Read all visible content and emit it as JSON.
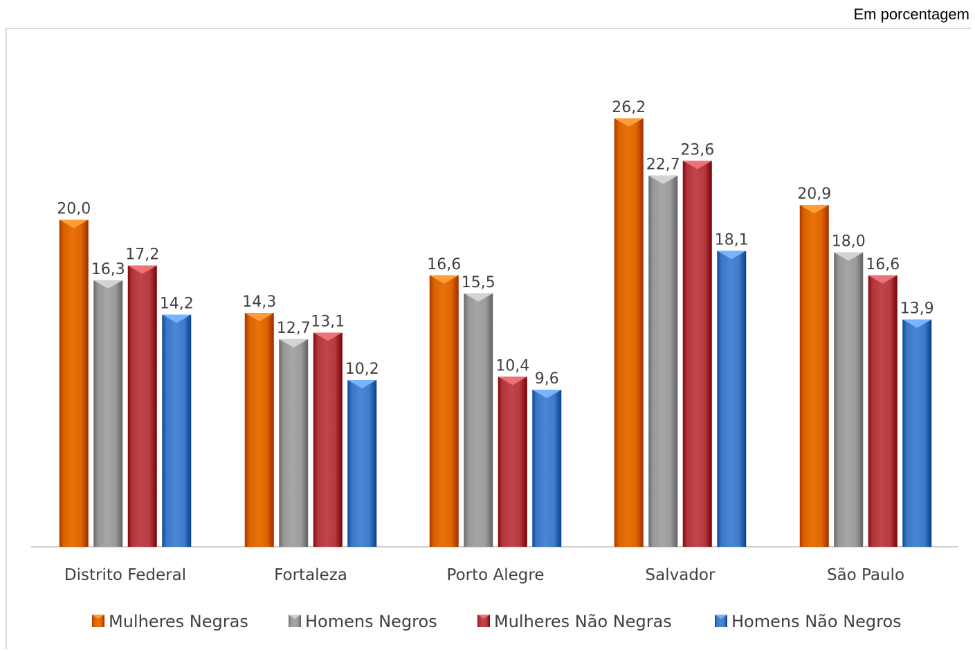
{
  "unit_note": "Em porcentagem",
  "colors": {
    "Mulheres Negras": "#e8710a",
    "Homens Negros": "#a6a6a6",
    "Mulheres Não Negras": "#c0454a",
    "Homens Não Negros": "#4a86d4"
  },
  "chart_data": {
    "type": "bar",
    "categories": [
      "Distrito Federal",
      "Fortaleza",
      "Porto Alegre",
      "Salvador",
      "São Paulo"
    ],
    "series": [
      {
        "name": "Mulheres Negras",
        "values": [
          20.0,
          14.3,
          16.6,
          26.2,
          20.9
        ],
        "labels": [
          "20,0",
          "14,3",
          "16,6",
          "26,2",
          "20,9"
        ]
      },
      {
        "name": "Homens Negros",
        "values": [
          16.3,
          12.7,
          15.5,
          22.7,
          18.0
        ],
        "labels": [
          "16,3",
          "12,7",
          "15,5",
          "22,7",
          "18,0"
        ]
      },
      {
        "name": "Mulheres Não Negras",
        "values": [
          17.2,
          13.1,
          10.4,
          23.6,
          16.6
        ],
        "labels": [
          "17,2",
          "13,1",
          "10,4",
          "23,6",
          "16,6"
        ]
      },
      {
        "name": "Homens Não Negros",
        "values": [
          14.2,
          10.2,
          9.6,
          18.1,
          13.9
        ],
        "labels": [
          "14,2",
          "10,2",
          "9,6",
          "18,1",
          "13,9"
        ]
      }
    ],
    "ylim": [
      0,
      30
    ],
    "grid": false,
    "legend": "bottom"
  }
}
